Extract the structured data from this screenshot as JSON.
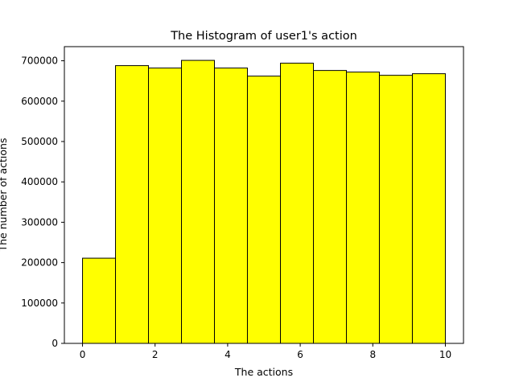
{
  "chart_data": {
    "type": "bar",
    "title": "The Histogram of user1's action",
    "xlabel": "The actions",
    "ylabel": "The number of actions",
    "bin_edges": [
      0,
      0.909,
      1.818,
      2.727,
      3.636,
      4.545,
      5.455,
      6.364,
      7.273,
      8.182,
      9.091,
      10
    ],
    "values": [
      211000,
      688000,
      682000,
      701000,
      682000,
      662000,
      694000,
      676000,
      672000,
      664000,
      668000
    ],
    "xlim": [
      -0.5,
      10.5
    ],
    "ylim": [
      0,
      735000
    ],
    "xticks": [
      0,
      2,
      4,
      6,
      8,
      10
    ],
    "yticks": [
      0,
      100000,
      200000,
      300000,
      400000,
      500000,
      600000,
      700000
    ],
    "bar_color": "#ffff00",
    "edge_color": "#000000",
    "grid": false,
    "legend": "none"
  }
}
